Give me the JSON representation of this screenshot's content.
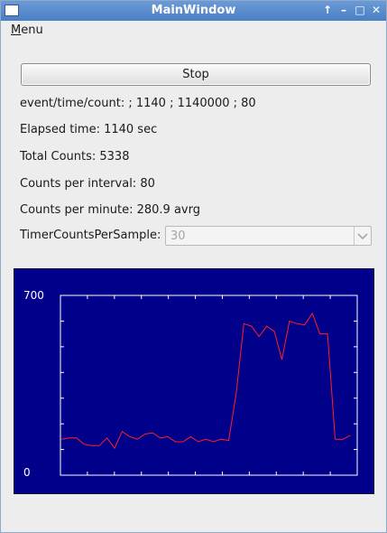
{
  "window": {
    "title": "MainWindow",
    "buttons": [
      "shade-icon",
      "minimize-icon",
      "maximize-icon",
      "close-icon"
    ]
  },
  "menubar": {
    "menu_label": "Menu"
  },
  "controls": {
    "stop_label": "Stop"
  },
  "info": {
    "event_line": "event/time/count: ; 1140 ; 1140000 ; 80",
    "elapsed_line": "Elapsed time: 1140 sec",
    "total_line": "Total Counts: 5338",
    "interval_line": "Counts per interval: 80",
    "minute_line": "Counts per minute: 280.9 avrg"
  },
  "timer": {
    "label": "TimerCountsPerSample:",
    "value": "30",
    "enabled": false
  },
  "chart_data": {
    "type": "line",
    "ylim": [
      0,
      700
    ],
    "ytick_labels": [
      "700",
      "0"
    ],
    "xlabel": "",
    "ylabel": "",
    "grid": false,
    "line_color": "#ff2020",
    "background": "#00008b",
    "axis_color": "#ffffff",
    "x_ticks": 11,
    "y_ticks": 7,
    "values": [
      140,
      145,
      145,
      120,
      115,
      115,
      145,
      105,
      170,
      150,
      140,
      160,
      165,
      145,
      150,
      130,
      130,
      150,
      130,
      140,
      130,
      140,
      135,
      320,
      590,
      580,
      540,
      580,
      560,
      450,
      600,
      590,
      585,
      630,
      550,
      550,
      140,
      140,
      155
    ],
    "x_domain": [
      0,
      80
    ]
  }
}
